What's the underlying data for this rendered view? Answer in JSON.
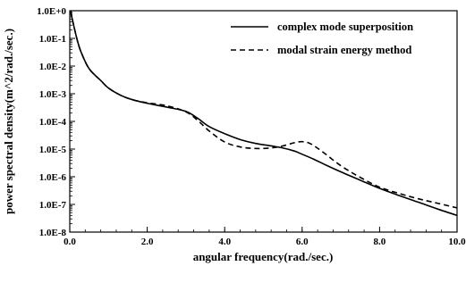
{
  "chart_data": {
    "type": "line",
    "title": "",
    "xlabel": "angular frequency(rad./sec.)",
    "ylabel": "power spectral density(m^2/rad./sec.)",
    "xlim": [
      0.0,
      10.0
    ],
    "ylim": [
      1e-08,
      1.0
    ],
    "yscale": "log",
    "grid": false,
    "legend_position": "top-right",
    "x_tick_labels": [
      "0.0",
      "2.0",
      "4.0",
      "6.0",
      "8.0",
      "10.0"
    ],
    "x_ticks": [
      0,
      2,
      4,
      6,
      8,
      10
    ],
    "y_tick_labels": [
      "1.0E+0",
      "1.0E-1",
      "1.0E-2",
      "1.0E-3",
      "1.0E-4",
      "1.0E-5",
      "1.0E-6",
      "1.0E-7",
      "1.0E-8"
    ],
    "y_ticks": [
      1,
      0.1,
      0.01,
      0.001,
      0.0001,
      1e-05,
      1e-06,
      1e-07,
      1e-08
    ],
    "series": [
      {
        "name": "complex mode superposition",
        "style": "solid",
        "color": "#000000",
        "x": [
          0.02,
          0.1,
          0.2,
          0.3,
          0.5,
          0.8,
          1.0,
          1.3,
          1.6,
          2.0,
          2.5,
          3.0,
          3.3,
          3.6,
          4.0,
          4.4,
          4.8,
          5.2,
          5.5,
          5.8,
          6.0,
          6.3,
          6.6,
          7.0,
          7.5,
          8.0,
          8.5,
          9.0,
          9.5,
          10.0
        ],
        "y": [
          1.0,
          0.3,
          0.08,
          0.03,
          0.008,
          0.003,
          0.0016,
          0.0009,
          0.00062,
          0.00045,
          0.00033,
          0.00023,
          0.00013,
          6.5e-05,
          3.6e-05,
          2.2e-05,
          1.6e-05,
          1.3e-05,
          1.1e-05,
          8.5e-06,
          6.5e-06,
          4.3e-06,
          2.7e-06,
          1.5e-06,
          7.5e-07,
          3.8e-07,
          2.1e-07,
          1.2e-07,
          6.8e-08,
          4e-08
        ]
      },
      {
        "name": "modal strain energy method",
        "style": "dashed",
        "color": "#000000",
        "x": [
          0.02,
          0.1,
          0.2,
          0.3,
          0.5,
          0.8,
          1.0,
          1.3,
          1.6,
          2.0,
          2.5,
          3.0,
          3.3,
          3.6,
          4.0,
          4.4,
          4.8,
          5.2,
          5.5,
          5.8,
          6.0,
          6.2,
          6.5,
          7.0,
          7.5,
          8.0,
          8.5,
          9.0,
          9.5,
          10.0
        ],
        "y": [
          1.0,
          0.3,
          0.08,
          0.03,
          0.008,
          0.003,
          0.0016,
          0.0009,
          0.00062,
          0.00047,
          0.00037,
          0.00022,
          0.00011,
          4.5e-05,
          1.8e-05,
          1.2e-05,
          1.05e-05,
          1.1e-05,
          1.3e-05,
          1.7e-05,
          1.85e-05,
          1.6e-05,
          8.5e-06,
          2.5e-06,
          9.5e-07,
          4.2e-07,
          2.5e-07,
          1.6e-07,
          1.1e-07,
          7.5e-08
        ]
      }
    ]
  }
}
